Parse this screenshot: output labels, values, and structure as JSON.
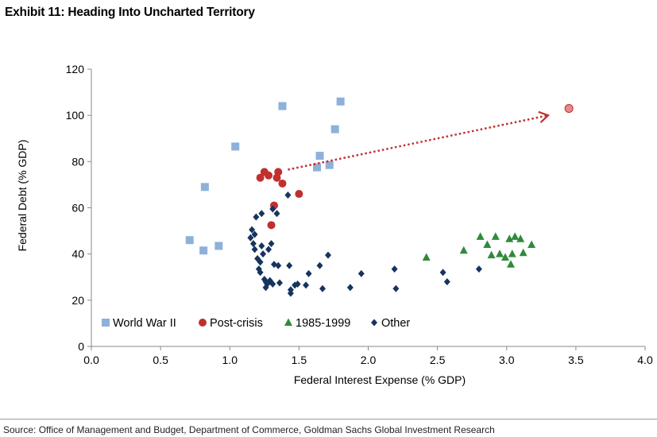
{
  "title": "Exhibit 11: Heading Into Uncharted Territory",
  "source": "Source: Office of Management and Budget, Department of Commerce, Goldman Sachs Global Investment Research",
  "chart_data": {
    "type": "scatter",
    "xlabel": "Federal Interest Expense (% GDP)",
    "ylabel": "Federal Debt (% GDP)",
    "xlim": [
      0.0,
      4.0
    ],
    "ylim": [
      0,
      120
    ],
    "x_ticks": [
      "0.0",
      "0.5",
      "1.0",
      "1.5",
      "2.0",
      "2.5",
      "3.0",
      "3.5",
      "4.0"
    ],
    "y_ticks": [
      "0",
      "20",
      "40",
      "60",
      "80",
      "100",
      "120"
    ],
    "grid": false,
    "legend_position": "bottom-left",
    "series": [
      {
        "name": "World War II",
        "marker": "square",
        "color": "#8eb1d9",
        "points": [
          [
            0.71,
            46
          ],
          [
            0.81,
            41.5
          ],
          [
            0.82,
            69
          ],
          [
            0.92,
            43.5
          ],
          [
            1.04,
            86.5
          ],
          [
            1.38,
            104
          ],
          [
            1.63,
            77.5
          ],
          [
            1.65,
            82.5
          ],
          [
            1.72,
            78.5
          ],
          [
            1.76,
            94
          ],
          [
            1.8,
            106
          ]
        ]
      },
      {
        "name": "Post-crisis",
        "marker": "circle",
        "color": "#c0302f",
        "points": [
          [
            1.22,
            73
          ],
          [
            1.25,
            75.5
          ],
          [
            1.28,
            74
          ],
          [
            1.3,
            52.5
          ],
          [
            1.32,
            61
          ],
          [
            1.34,
            73
          ],
          [
            1.35,
            75.5
          ],
          [
            1.38,
            70.5
          ],
          [
            1.5,
            66
          ]
        ]
      },
      {
        "name": "1985-1999",
        "marker": "triangle",
        "color": "#2e8b3a",
        "points": [
          [
            2.42,
            38.5
          ],
          [
            2.69,
            41.5
          ],
          [
            2.81,
            47.5
          ],
          [
            2.86,
            44
          ],
          [
            2.89,
            39.5
          ],
          [
            2.92,
            47.5
          ],
          [
            2.95,
            40
          ],
          [
            2.99,
            38.5
          ],
          [
            3.02,
            46.5
          ],
          [
            3.03,
            35.5
          ],
          [
            3.04,
            40
          ],
          [
            3.06,
            47.5
          ],
          [
            3.1,
            46.5
          ],
          [
            3.12,
            40.5
          ],
          [
            3.18,
            44
          ]
        ]
      },
      {
        "name": "Other",
        "marker": "diamond",
        "color": "#16345e",
        "points": [
          [
            1.15,
            47
          ],
          [
            1.16,
            50.5
          ],
          [
            1.17,
            44.5
          ],
          [
            1.18,
            48.5
          ],
          [
            1.18,
            42
          ],
          [
            1.19,
            56
          ],
          [
            1.2,
            38
          ],
          [
            1.21,
            33.5
          ],
          [
            1.22,
            36.5
          ],
          [
            1.22,
            32
          ],
          [
            1.23,
            57.5
          ],
          [
            1.23,
            43.5
          ],
          [
            1.24,
            40
          ],
          [
            1.25,
            29
          ],
          [
            1.26,
            28
          ],
          [
            1.26,
            25.5
          ],
          [
            1.27,
            27
          ],
          [
            1.28,
            42
          ],
          [
            1.29,
            28.5
          ],
          [
            1.3,
            44.5
          ],
          [
            1.31,
            27
          ],
          [
            1.31,
            59.5
          ],
          [
            1.32,
            35.5
          ],
          [
            1.34,
            57.5
          ],
          [
            1.35,
            35
          ],
          [
            1.36,
            27.5
          ],
          [
            1.42,
            65.5
          ],
          [
            1.43,
            35
          ],
          [
            1.44,
            24.5
          ],
          [
            1.44,
            23
          ],
          [
            1.47,
            26.5
          ],
          [
            1.49,
            27
          ],
          [
            1.55,
            26.5
          ],
          [
            1.57,
            31.5
          ],
          [
            1.65,
            35
          ],
          [
            1.67,
            25
          ],
          [
            1.71,
            39.5
          ],
          [
            1.87,
            25.5
          ],
          [
            1.95,
            31.5
          ],
          [
            2.19,
            33.5
          ],
          [
            2.2,
            25
          ],
          [
            2.54,
            32
          ],
          [
            2.57,
            28
          ],
          [
            2.8,
            33.5
          ]
        ]
      }
    ],
    "projection": {
      "from_point": [
        1.42,
        76.5
      ],
      "to_point": [
        3.3,
        100
      ],
      "projected_point": [
        3.45,
        103
      ]
    }
  }
}
